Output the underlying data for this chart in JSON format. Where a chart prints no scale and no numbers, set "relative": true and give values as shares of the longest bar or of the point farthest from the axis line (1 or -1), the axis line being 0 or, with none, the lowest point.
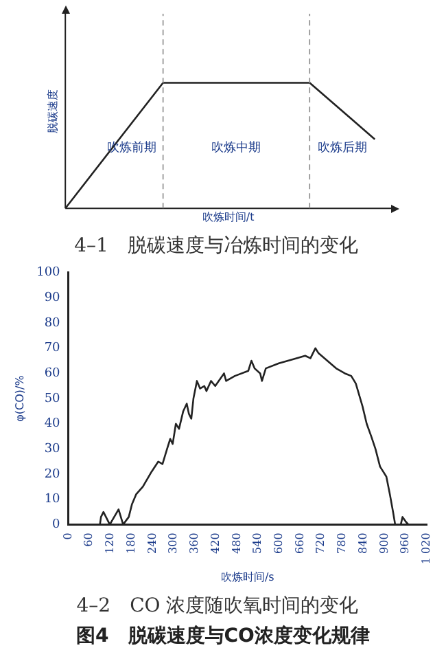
{
  "chart_data": [
    {
      "type": "line",
      "relative": true,
      "ylabel": "脱碳速度",
      "xlabel": "吹炼时间/t",
      "title": "4–1　脱碳速度与冶炼时间的变化",
      "categories": [
        null,
        null,
        null,
        null,
        null,
        null,
        null,
        null,
        null,
        null,
        null,
        null,
        null,
        null,
        null,
        null,
        null,
        null,
        null,
        null,
        null
      ],
      "color": "#222222",
      "values": [
        0,
        null,
        null,
        null,
        null,
        null,
        1,
        null,
        null,
        null,
        null,
        null,
        null,
        null,
        null,
        1,
        null,
        null,
        null,
        0.55,
        null
      ],
      "marker": "none",
      "grid": false,
      "legend": false,
      "tick_labels": false,
      "annotations": [
        "吹炼前期",
        "吹炼中期",
        "吹炼后期"
      ]
    },
    {
      "type": "line",
      "title": "4–2　CO 浓度随吹氧时间的变化",
      "xlabel": "吹炼时间/s",
      "ylabel": "φ(CO)/%",
      "color": "#222222",
      "marker": "none",
      "grid": false,
      "legend": false,
      "x": [
        0,
        90,
        93,
        100,
        118,
        143,
        156,
        172,
        181,
        193,
        212,
        237,
        256,
        268,
        281,
        290,
        297,
        306,
        315,
        327,
        337,
        343,
        350,
        356,
        366,
        375,
        387,
        393,
        406,
        418,
        443,
        449,
        474,
        512,
        521,
        530,
        546,
        551,
        562,
        599,
        649,
        674,
        689,
        703,
        712,
        737,
        762,
        787,
        805,
        818,
        837,
        849,
        862,
        874,
        887,
        896,
        905,
        915,
        924,
        930,
        946,
        951,
        961,
        968,
        1020
      ],
      "values": [
        0,
        0,
        3,
        5,
        0,
        6,
        0,
        3,
        8,
        12,
        15,
        21,
        25,
        24,
        30,
        34,
        32,
        40,
        38,
        45,
        48,
        44,
        42,
        50,
        57,
        54,
        55,
        53,
        57,
        55,
        60,
        57,
        59,
        61,
        65,
        62,
        60,
        57,
        62,
        64,
        66,
        67,
        66,
        70,
        68,
        65,
        62,
        60,
        59,
        56,
        47,
        40,
        35,
        30,
        23,
        21,
        19,
        12,
        5,
        0,
        0,
        3,
        1,
        0,
        0
      ],
      "xlim": [
        0,
        1020
      ],
      "xticks": [
        0,
        60,
        120,
        180,
        240,
        300,
        360,
        420,
        480,
        540,
        600,
        660,
        720,
        780,
        840,
        900,
        960,
        {
          "value": 1020,
          "label": "1 020"
        }
      ],
      "ylim": [
        0,
        100
      ],
      "yticks": [
        0,
        10,
        20,
        30,
        40,
        50,
        60,
        70,
        80,
        90,
        100
      ],
      "annotations": [
        "图4　脱碳速度与CO浓度变化规律"
      ]
    }
  ]
}
